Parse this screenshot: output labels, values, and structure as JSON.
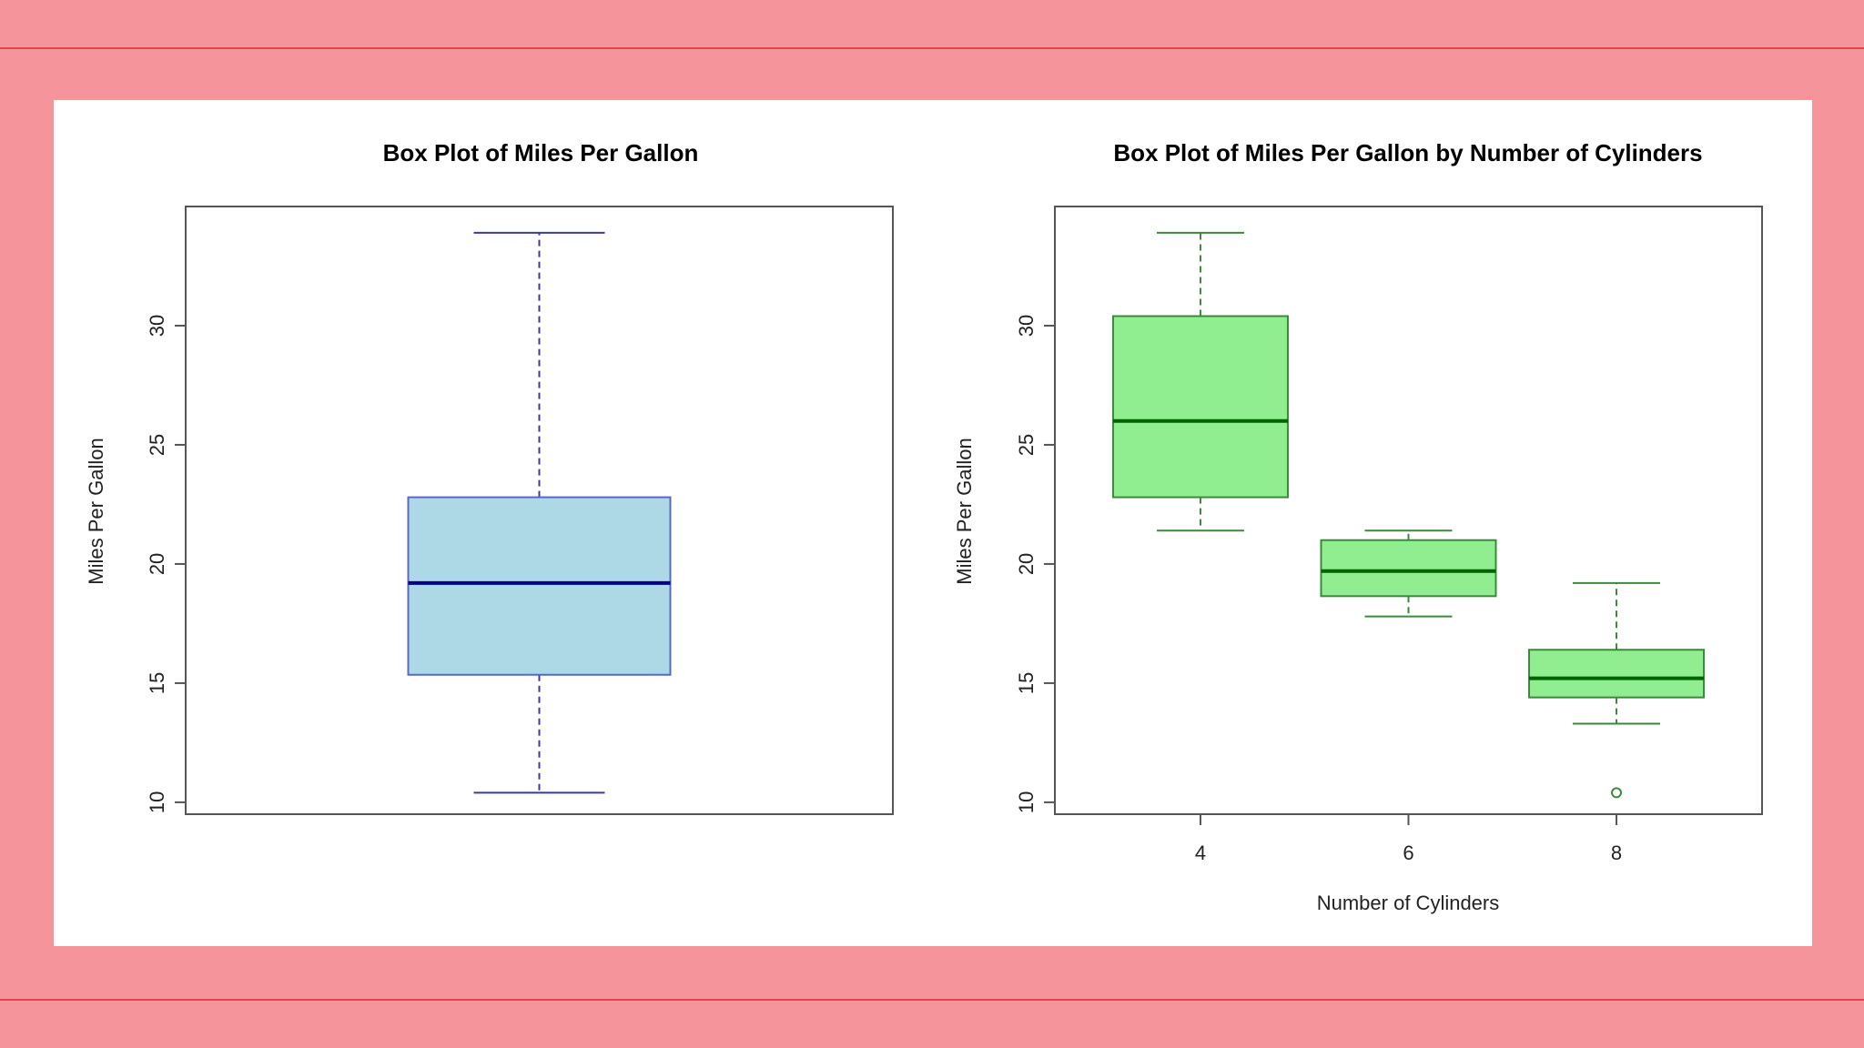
{
  "colors": {
    "background": "#f5959b",
    "frame_line": "#d8464f",
    "panel": "#ffffff",
    "left_fill": "#add8e6",
    "left_border": "#5b67c7",
    "left_median": "#00008b",
    "left_whisker": "#3a3aa0",
    "right_fill": "#90ee90",
    "right_border": "#3a8a3a",
    "right_median": "#006400",
    "right_whisker": "#3a8a3a"
  },
  "chart_data": [
    {
      "type": "box",
      "title": "Box Plot of Miles Per Gallon",
      "xlabel": "",
      "ylabel": "Miles Per Gallon",
      "ylim": [
        9.5,
        35.0
      ],
      "yticks": [
        "10",
        "15",
        "20",
        "25",
        "30"
      ],
      "grid": false,
      "categories": [],
      "boxes": [
        {
          "min": 10.4,
          "q1": 15.35,
          "median": 19.2,
          "q3": 22.8,
          "max": 33.9,
          "outliers": []
        }
      ]
    },
    {
      "type": "box",
      "title": "Box Plot of Miles Per Gallon by Number of Cylinders",
      "xlabel": "Number of Cylinders",
      "ylabel": "Miles Per Gallon",
      "ylim": [
        9.5,
        35.0
      ],
      "yticks": [
        "10",
        "15",
        "20",
        "25",
        "30"
      ],
      "grid": false,
      "categories": [
        "4",
        "6",
        "8"
      ],
      "boxes": [
        {
          "min": 21.4,
          "q1": 22.8,
          "median": 26.0,
          "q3": 30.4,
          "max": 33.9,
          "outliers": []
        },
        {
          "min": 17.8,
          "q1": 18.65,
          "median": 19.7,
          "q3": 21.0,
          "max": 21.4,
          "outliers": []
        },
        {
          "min": 13.3,
          "q1": 14.4,
          "median": 15.2,
          "q3": 16.4,
          "max": 19.2,
          "outliers": [
            10.4
          ]
        }
      ]
    }
  ]
}
